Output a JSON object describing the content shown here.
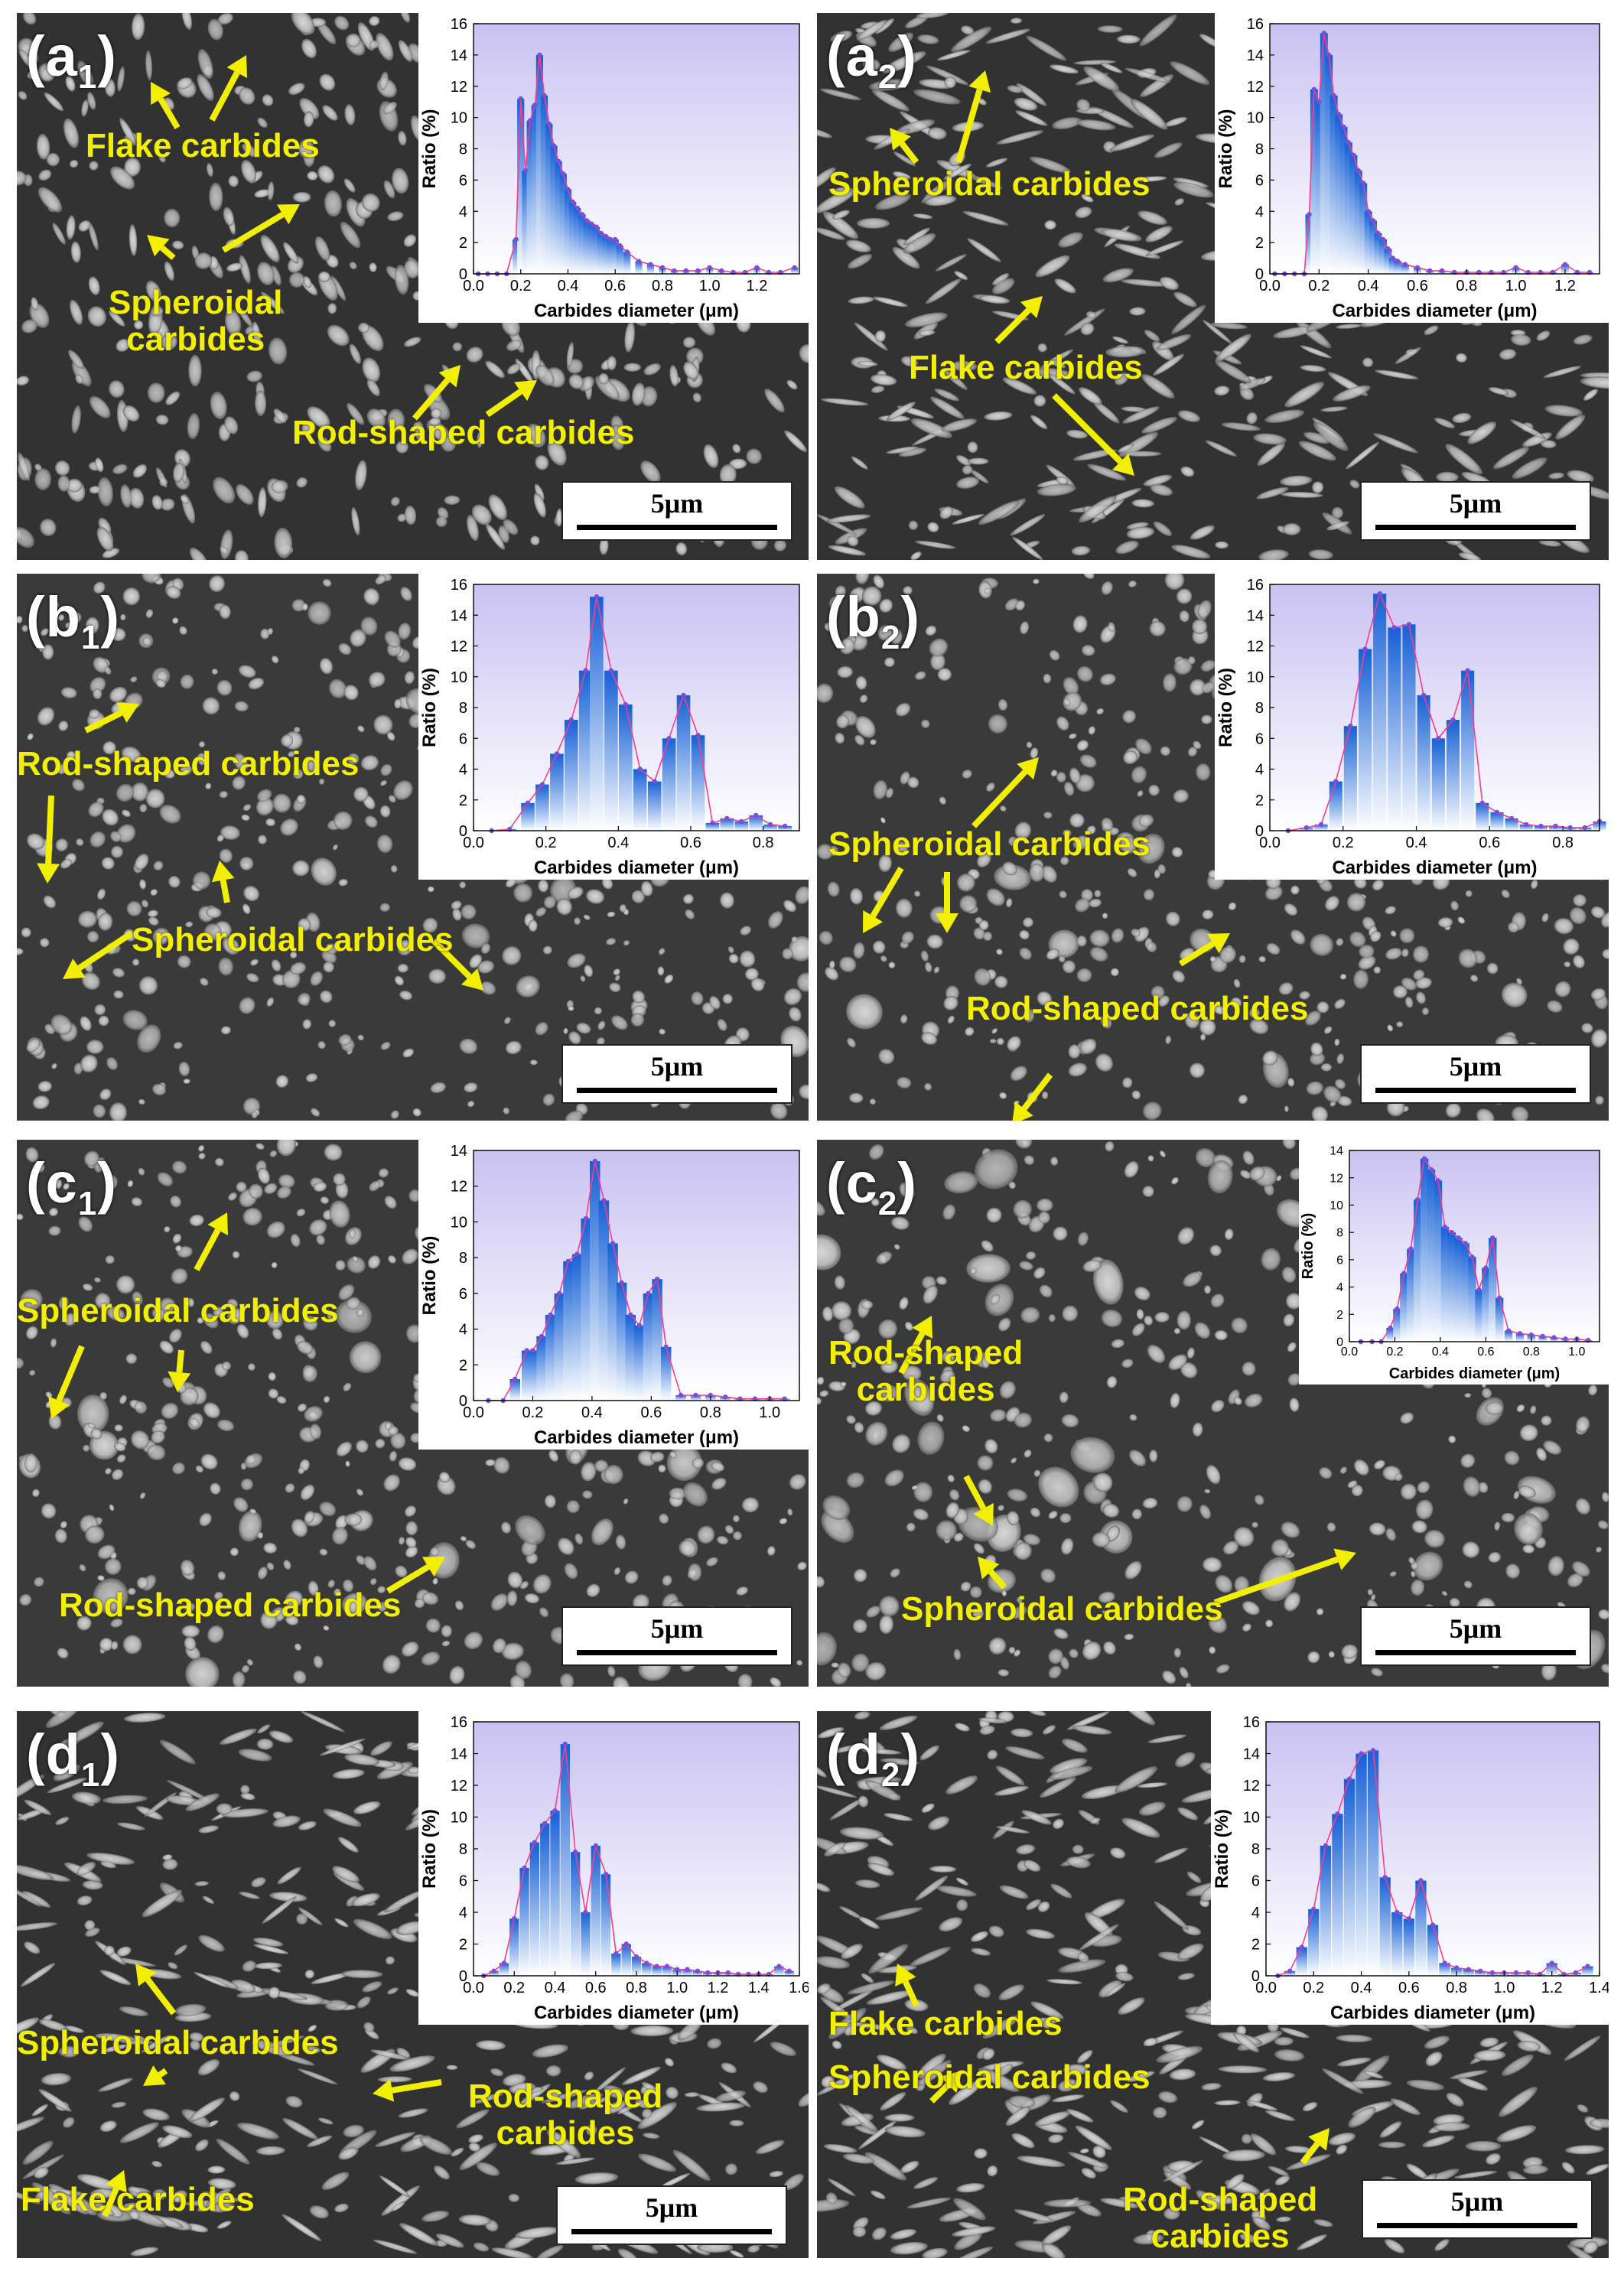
{
  "scale_bar_label": "5μm",
  "xlabel": "Carbides diameter (μm)",
  "ylabel": "Ratio (%)",
  "colors": {
    "callout": "#f2ef00",
    "bar_top": "#1560d6",
    "bar_bottom": "#ffffff",
    "trend": "#ff3c8c",
    "marker": "#7a4fd8"
  },
  "panels": [
    {
      "id": "a1",
      "letter": "(a",
      "sub": "1",
      "paren": ")",
      "callouts": [
        {
          "text": "Flake carbides"
        },
        {
          "text": "Spheroidal\ncarbides"
        },
        {
          "text": "Rod-shaped carbides"
        }
      ]
    },
    {
      "id": "a2",
      "letter": "(a",
      "sub": "2",
      "paren": ")",
      "callouts": [
        {
          "text": "Spheroidal carbides"
        },
        {
          "text": "Flake carbides"
        }
      ]
    },
    {
      "id": "b1",
      "letter": "(b",
      "sub": "1",
      "paren": ")",
      "callouts": [
        {
          "text": "Rod-shaped carbides"
        },
        {
          "text": "Spheroidal carbides"
        }
      ]
    },
    {
      "id": "b2",
      "letter": "(b",
      "sub": "2",
      "paren": ")",
      "callouts": [
        {
          "text": "Spheroidal carbides"
        },
        {
          "text": "Rod-shaped carbides"
        }
      ]
    },
    {
      "id": "c1",
      "letter": "(c",
      "sub": "1",
      "paren": ")",
      "callouts": [
        {
          "text": "Spheroidal carbides"
        },
        {
          "text": "Rod-shaped carbides"
        }
      ]
    },
    {
      "id": "c2",
      "letter": "(c",
      "sub": "2",
      "paren": ")",
      "callouts": [
        {
          "text": "Rod-shaped\ncarbides"
        },
        {
          "text": "Spheroidal carbides"
        }
      ]
    },
    {
      "id": "d1",
      "letter": "(d",
      "sub": "1",
      "paren": ")",
      "callouts": [
        {
          "text": "Spheroidal carbides"
        },
        {
          "text": "Rod-shaped\ncarbides"
        },
        {
          "text": "Flake carbides"
        }
      ]
    },
    {
      "id": "d2",
      "letter": "(d",
      "sub": "2",
      "paren": ")",
      "callouts": [
        {
          "text": "Flake carbides"
        },
        {
          "text": "Spheroidal carbides"
        },
        {
          "text": "Rod-shaped\ncarbides"
        }
      ]
    }
  ],
  "chart_data": [
    {
      "panel": "a1",
      "type": "bar",
      "title": "",
      "xlabel": "Carbides diameter (μm)",
      "ylabel": "Ratio (%)",
      "xlim": [
        0,
        1.38
      ],
      "ylim": [
        0,
        16
      ],
      "xticks": [
        0.0,
        0.2,
        0.4,
        0.6,
        0.8,
        1.0,
        1.2
      ],
      "yticks": [
        0,
        2,
        4,
        6,
        8,
        10,
        12,
        14,
        16
      ],
      "x": [
        0.02,
        0.06,
        0.1,
        0.14,
        0.18,
        0.2,
        0.22,
        0.24,
        0.26,
        0.28,
        0.3,
        0.32,
        0.34,
        0.36,
        0.38,
        0.4,
        0.42,
        0.44,
        0.46,
        0.48,
        0.5,
        0.52,
        0.54,
        0.56,
        0.58,
        0.6,
        0.62,
        0.65,
        0.7,
        0.75,
        0.8,
        0.85,
        0.9,
        0.95,
        1.0,
        1.05,
        1.1,
        1.15,
        1.2,
        1.25,
        1.3,
        1.36
      ],
      "y": [
        0,
        0,
        0,
        0,
        2.2,
        11.2,
        6.6,
        9.8,
        10.8,
        14.0,
        11.4,
        9.6,
        8.2,
        7.2,
        6.4,
        5.4,
        4.6,
        4.2,
        3.8,
        3.4,
        3.2,
        3.0,
        2.6,
        2.4,
        2.2,
        2.2,
        1.8,
        1.4,
        0.8,
        0.6,
        0.4,
        0.2,
        0.2,
        0.2,
        0.4,
        0.2,
        0.1,
        0.1,
        0.4,
        0.1,
        0.1,
        0.4
      ]
    },
    {
      "panel": "a2",
      "type": "bar",
      "title": "",
      "xlabel": "Carbides diameter (μm)",
      "ylabel": "Ratio (%)",
      "xlim": [
        0,
        1.34
      ],
      "ylim": [
        0,
        16
      ],
      "xticks": [
        0.0,
        0.2,
        0.4,
        0.6,
        0.8,
        1.0,
        1.2
      ],
      "yticks": [
        0,
        2,
        4,
        6,
        8,
        10,
        12,
        14,
        16
      ],
      "x": [
        0.02,
        0.06,
        0.1,
        0.14,
        0.16,
        0.18,
        0.2,
        0.22,
        0.24,
        0.26,
        0.28,
        0.3,
        0.32,
        0.34,
        0.36,
        0.38,
        0.4,
        0.42,
        0.44,
        0.46,
        0.48,
        0.5,
        0.52,
        0.55,
        0.6,
        0.65,
        0.7,
        0.75,
        0.8,
        0.85,
        0.9,
        0.95,
        1.0,
        1.05,
        1.1,
        1.15,
        1.2,
        1.25,
        1.3
      ],
      "y": [
        0,
        0,
        0,
        0,
        3.8,
        11.8,
        11.0,
        15.4,
        14.0,
        11.4,
        10.2,
        9.4,
        8.4,
        7.6,
        6.6,
        5.8,
        4.0,
        3.4,
        2.6,
        2.2,
        1.6,
        1.0,
        0.8,
        0.6,
        0.4,
        0.2,
        0.2,
        0.1,
        0.1,
        0.1,
        0.1,
        0.1,
        0.4,
        0.1,
        0.1,
        0.1,
        0.6,
        0.1,
        0.1
      ]
    },
    {
      "panel": "b1",
      "type": "bar",
      "title": "",
      "xlabel": "Carbides diameter (μm)",
      "ylabel": "Ratio (%)",
      "xlim": [
        0,
        0.9
      ],
      "ylim": [
        0,
        16
      ],
      "xticks": [
        0.0,
        0.2,
        0.4,
        0.6,
        0.8
      ],
      "yticks": [
        0,
        2,
        4,
        6,
        8,
        10,
        12,
        14,
        16
      ],
      "x": [
        0.05,
        0.1,
        0.15,
        0.19,
        0.23,
        0.27,
        0.31,
        0.34,
        0.38,
        0.42,
        0.46,
        0.5,
        0.54,
        0.58,
        0.62,
        0.66,
        0.7,
        0.74,
        0.78,
        0.82,
        0.86
      ],
      "y": [
        0,
        0.1,
        1.8,
        3.0,
        5.0,
        7.2,
        10.4,
        15.2,
        10.4,
        8.2,
        4.0,
        3.2,
        6.0,
        8.8,
        6.2,
        0.5,
        0.8,
        0.6,
        1.0,
        0.4,
        0.3
      ]
    },
    {
      "panel": "b2",
      "type": "bar",
      "title": "",
      "xlabel": "Carbides diameter (μm)",
      "ylabel": "Ratio (%)",
      "xlim": [
        0,
        0.9
      ],
      "ylim": [
        0,
        16
      ],
      "xticks": [
        0.0,
        0.2,
        0.4,
        0.6,
        0.8
      ],
      "yticks": [
        0,
        2,
        4,
        6,
        8,
        10,
        12,
        14,
        16
      ],
      "x": [
        0.05,
        0.1,
        0.14,
        0.18,
        0.22,
        0.26,
        0.3,
        0.34,
        0.38,
        0.42,
        0.46,
        0.5,
        0.54,
        0.58,
        0.62,
        0.66,
        0.7,
        0.74,
        0.78,
        0.82,
        0.86,
        0.9
      ],
      "y": [
        0,
        0.2,
        0.4,
        3.2,
        6.8,
        11.8,
        15.4,
        13.2,
        13.4,
        8.8,
        6.0,
        7.2,
        10.4,
        1.8,
        1.2,
        0.8,
        0.4,
        0.3,
        0.3,
        0.2,
        0.2,
        0.6
      ]
    },
    {
      "panel": "c1",
      "type": "bar",
      "title": "",
      "xlabel": "Carbides diameter (μm)",
      "ylabel": "Ratio (%)",
      "xlim": [
        0,
        1.1
      ],
      "ylim": [
        0,
        14
      ],
      "xticks": [
        0.0,
        0.2,
        0.4,
        0.6,
        0.8,
        1.0
      ],
      "yticks": [
        0,
        2,
        4,
        6,
        8,
        10,
        12,
        14
      ],
      "x": [
        0.05,
        0.1,
        0.14,
        0.18,
        0.2,
        0.23,
        0.26,
        0.29,
        0.32,
        0.35,
        0.38,
        0.41,
        0.44,
        0.47,
        0.5,
        0.53,
        0.56,
        0.59,
        0.62,
        0.65,
        0.7,
        0.75,
        0.8,
        0.85,
        0.9,
        0.95,
        1.0,
        1.05
      ],
      "y": [
        0,
        0,
        1.2,
        2.8,
        2.8,
        3.6,
        4.8,
        6.0,
        7.8,
        8.2,
        10.2,
        13.4,
        11.2,
        8.8,
        6.6,
        4.8,
        4.2,
        6.0,
        6.8,
        3.0,
        0.3,
        0.3,
        0.3,
        0.2,
        0.1,
        0.1,
        0.1,
        0.1
      ]
    },
    {
      "panel": "c2",
      "type": "bar",
      "title": "",
      "xlabel": "Carbides diameter (μm)",
      "ylabel": "Ratio (%)",
      "xlim": [
        0,
        1.1
      ],
      "ylim": [
        0,
        14
      ],
      "xticks": [
        0.0,
        0.2,
        0.4,
        0.6,
        0.8,
        1.0
      ],
      "yticks": [
        0,
        2,
        4,
        6,
        8,
        10,
        12,
        14
      ],
      "x": [
        0.05,
        0.1,
        0.14,
        0.18,
        0.21,
        0.24,
        0.27,
        0.3,
        0.33,
        0.36,
        0.39,
        0.42,
        0.45,
        0.48,
        0.51,
        0.54,
        0.57,
        0.6,
        0.63,
        0.66,
        0.7,
        0.75,
        0.8,
        0.85,
        0.9,
        0.95,
        1.0,
        1.05
      ],
      "y": [
        0,
        0,
        0,
        1.0,
        2.4,
        5.0,
        6.8,
        10.4,
        13.4,
        12.6,
        11.8,
        8.4,
        8.0,
        7.6,
        7.2,
        6.2,
        3.8,
        5.4,
        7.6,
        3.2,
        0.8,
        0.6,
        0.5,
        0.4,
        0.3,
        0.2,
        0.2,
        0.1
      ]
    },
    {
      "panel": "d1",
      "type": "bar",
      "title": "",
      "xlabel": "Carbides diameter (μm)",
      "ylabel": "Ratio (%)",
      "xlim": [
        0,
        1.6
      ],
      "ylim": [
        0,
        16
      ],
      "xticks": [
        0.0,
        0.2,
        0.4,
        0.6,
        0.8,
        1.0,
        1.2,
        1.4,
        1.6
      ],
      "yticks": [
        0,
        2,
        4,
        6,
        8,
        10,
        12,
        14,
        16
      ],
      "x": [
        0.05,
        0.1,
        0.15,
        0.2,
        0.25,
        0.3,
        0.35,
        0.4,
        0.45,
        0.5,
        0.55,
        0.6,
        0.65,
        0.7,
        0.75,
        0.8,
        0.85,
        0.9,
        0.95,
        1.0,
        1.05,
        1.1,
        1.15,
        1.2,
        1.25,
        1.3,
        1.35,
        1.4,
        1.45,
        1.5,
        1.55
      ],
      "y": [
        0,
        0.3,
        0.8,
        3.6,
        6.8,
        8.4,
        9.6,
        10.4,
        14.6,
        7.8,
        4.0,
        8.2,
        6.4,
        1.4,
        2.0,
        1.2,
        0.8,
        0.6,
        0.6,
        0.4,
        0.4,
        0.3,
        0.2,
        0.2,
        0.2,
        0.1,
        0.1,
        0.1,
        0.1,
        0.6,
        0.3
      ]
    },
    {
      "panel": "d2",
      "type": "bar",
      "title": "",
      "xlabel": "Carbides diameter (μm)",
      "ylabel": "Ratio (%)",
      "xlim": [
        0,
        1.4
      ],
      "ylim": [
        0,
        16
      ],
      "xticks": [
        0.0,
        0.2,
        0.4,
        0.6,
        0.8,
        1.0,
        1.2,
        1.4
      ],
      "yticks": [
        0,
        2,
        4,
        6,
        8,
        10,
        12,
        14,
        16
      ],
      "x": [
        0.05,
        0.1,
        0.15,
        0.2,
        0.25,
        0.3,
        0.35,
        0.4,
        0.45,
        0.5,
        0.55,
        0.6,
        0.65,
        0.7,
        0.75,
        0.8,
        0.85,
        0.9,
        0.95,
        1.0,
        1.05,
        1.1,
        1.15,
        1.2,
        1.25,
        1.3,
        1.35
      ],
      "y": [
        0,
        0.3,
        1.8,
        4.2,
        8.2,
        10.2,
        12.4,
        14.0,
        14.2,
        6.2,
        4.0,
        3.6,
        6.0,
        3.2,
        0.8,
        0.5,
        0.4,
        0.3,
        0.2,
        0.2,
        0.2,
        0.2,
        0.1,
        0.8,
        0.1,
        0.2,
        0.6
      ]
    }
  ]
}
